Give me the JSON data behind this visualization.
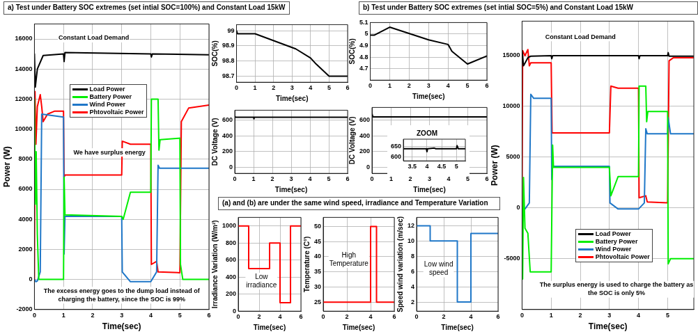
{
  "chart_data": [
    {
      "type": "other",
      "title": "a) Test under Battery SOC extremes (set intial SOC=100%) and Constant Load 15kW"
    },
    {
      "type": "line",
      "xlabel": "Time(sec)",
      "ylabel": "Power (W)",
      "xlim": [
        0,
        6
      ],
      "xticks": [
        0,
        1,
        2,
        3,
        4,
        5,
        6
      ],
      "ylim": [
        -2000,
        17000
      ],
      "yticks": [
        -2000,
        0,
        2000,
        4000,
        6000,
        8000,
        10000,
        12000,
        14000,
        16000
      ],
      "grid": true,
      "legend": "top left",
      "series": [
        {
          "name": "Load Power",
          "color": "#000000",
          "x": [
            0,
            0.03,
            0.1,
            0.3,
            1,
            1.02,
            1.05,
            4,
            4.02,
            4.05,
            6
          ],
          "values": [
            15000,
            12800,
            14000,
            14900,
            15000,
            14500,
            15100,
            15000,
            14800,
            15000,
            14950
          ]
        },
        {
          "name": "Battery Power",
          "color": "#00ee00",
          "x": [
            0,
            0.03,
            0.06,
            0.1,
            0.15,
            1,
            1.02,
            1.05,
            3,
            3.05,
            3.3,
            4,
            4.02,
            4.25,
            4.28,
            4.32,
            5,
            5.02,
            5.1,
            6
          ],
          "values": [
            12000,
            5000,
            8500,
            3000,
            0,
            0,
            6800,
            4300,
            4200,
            4000,
            5800,
            5800,
            12000,
            12000,
            8600,
            9300,
            9400,
            1000,
            0,
            0
          ]
        },
        {
          "name": "Wind Power",
          "color": "#1f77c8",
          "x": [
            0,
            0.05,
            0.1,
            0.2,
            0.25,
            1,
            1.02,
            1.05,
            3,
            3.02,
            3.3,
            4,
            4.2,
            4.25,
            4.3,
            6
          ],
          "values": [
            0,
            -150,
            -100,
            500,
            11000,
            10800,
            1700,
            4200,
            4200,
            500,
            -150,
            -150,
            500,
            7600,
            7400,
            7400
          ]
        },
        {
          "name": "Phtovoltaic Power",
          "color": "#ff0000",
          "x": [
            0,
            0.02,
            0.05,
            0.1,
            0.2,
            0.25,
            0.3,
            0.45,
            0.7,
            1,
            1.02,
            1.05,
            3,
            3.02,
            3.3,
            4,
            4.02,
            4.2,
            4.25,
            5,
            5.05,
            5.3,
            6
          ],
          "values": [
            0,
            12500,
            9000,
            11500,
            12300,
            11500,
            10500,
            11000,
            11200,
            11200,
            6800,
            6950,
            6950,
            9200,
            9000,
            9000,
            1000,
            1200,
            500,
            450,
            10500,
            11400,
            11600
          ]
        }
      ],
      "annotations": [
        "Constant Load Demand",
        "We have surplus energy",
        "The excess energy goes to the dump load instead of charging the battery, since the SOC is 99%"
      ]
    },
    {
      "type": "line",
      "xlabel": "Time(sec)",
      "ylabel": "SOC(%)",
      "xlim": [
        0,
        6
      ],
      "xticks": [
        0,
        1,
        2,
        3,
        4,
        5,
        6
      ],
      "ylim": [
        98.66,
        99.04
      ],
      "yticks": [
        98.7,
        98.8,
        98.9,
        99
      ],
      "grid": true,
      "series": [
        {
          "color": "#000000",
          "x": [
            0,
            0.05,
            1,
            3.2,
            4,
            4.3,
            5,
            6
          ],
          "values": [
            99,
            98.98,
            98.98,
            98.88,
            98.82,
            98.78,
            98.7,
            98.7
          ]
        }
      ]
    },
    {
      "type": "line",
      "xlabel": "Time(sec)",
      "ylabel": "DC Voltage (V)",
      "xlim": [
        0,
        6
      ],
      "xticks": [
        0,
        1,
        2,
        3,
        4,
        5,
        6
      ],
      "ylim": [
        -80,
        730
      ],
      "yticks": [
        0,
        200,
        400,
        600
      ],
      "grid": true,
      "series": [
        {
          "color": "#000000",
          "x": [
            0,
            0.05,
            1,
            1.02,
            1.05,
            6
          ],
          "values": [
            650,
            640,
            640,
            620,
            640,
            640
          ]
        }
      ]
    },
    {
      "type": "other",
      "title": "b) Test under Battery SOC extremes (set intial SOC=5%) and Constant Load 15kW"
    },
    {
      "type": "line",
      "xlabel": "Time(sec)",
      "ylabel": "SOC(%)",
      "xlim": [
        0,
        6
      ],
      "xticks": [
        0,
        1,
        2,
        3,
        4,
        5,
        6
      ],
      "ylim": [
        4.6,
        5.1
      ],
      "yticks": [
        4.7,
        4.8,
        4.9,
        5,
        5.1
      ],
      "grid": true,
      "series": [
        {
          "color": "#000000",
          "x": [
            0,
            0.2,
            1,
            3,
            4,
            4.2,
            5,
            6
          ],
          "values": [
            4.99,
            4.99,
            5.06,
            4.95,
            4.91,
            4.85,
            4.74,
            4.81
          ]
        }
      ]
    },
    {
      "type": "line",
      "xlabel": "Time(sec)",
      "ylabel": "DC Voltage (V)",
      "xlim": [
        0,
        6
      ],
      "xticks": [
        0,
        1,
        2,
        3,
        4,
        5,
        6
      ],
      "ylim": [
        -80,
        760
      ],
      "yticks": [
        0,
        200,
        400,
        600
      ],
      "grid": true,
      "series": [
        {
          "color": "#000000",
          "x": [
            0,
            0.05,
            6
          ],
          "values": [
            680,
            640,
            640
          ]
        }
      ]
    },
    {
      "type": "line",
      "title": "ZOOM",
      "xlim": [
        3.2,
        5.3
      ],
      "xticks": [
        3.5,
        4,
        4.5,
        5
      ],
      "ylim": [
        580,
        687
      ],
      "yticks": [
        600,
        650
      ],
      "grid": true,
      "series": [
        {
          "color": "#000000",
          "x": [
            3.2,
            3.98,
            4,
            4.02,
            4.25,
            4.3,
            5,
            5.02,
            5.06,
            5.3
          ],
          "values": [
            640,
            640,
            625,
            640,
            643,
            640,
            640,
            655,
            640,
            640
          ]
        }
      ]
    },
    {
      "type": "line",
      "xlabel": "Time(sec)",
      "ylabel": "Power (W)",
      "xlim": [
        0,
        5.9
      ],
      "xticks": [
        0,
        1,
        2,
        3,
        4,
        5
      ],
      "ylim": [
        -10000,
        18400
      ],
      "yticks": [
        -5000,
        0,
        5000,
        10000,
        15000
      ],
      "grid": true,
      "legend": "bottom",
      "series": [
        {
          "name": "Load Power",
          "color": "#000000",
          "x": [
            0,
            0.05,
            0.2,
            0.3,
            1,
            1.02,
            1.05,
            4,
            4.02,
            4.05,
            5,
            5.02,
            5.05,
            5.9
          ],
          "values": [
            15500,
            14000,
            14800,
            14950,
            15000,
            14700,
            15000,
            15000,
            14700,
            15000,
            15000,
            15300,
            14950,
            14950
          ]
        },
        {
          "name": "Battery Power",
          "color": "#00ee00",
          "x": [
            0,
            0.02,
            0.05,
            0.1,
            0.2,
            0.28,
            1,
            1.05,
            1.08,
            3,
            3.05,
            3.3,
            4,
            4.02,
            4.25,
            4.28,
            4.32,
            5,
            5.02,
            5.1,
            5.9
          ],
          "values": [
            0,
            -7000,
            3000,
            -2000,
            -2500,
            -6300,
            -6300,
            6200,
            4000,
            4000,
            1200,
            3100,
            3100,
            12000,
            12000,
            8500,
            9500,
            9500,
            -5500,
            -5000,
            -5000
          ]
        },
        {
          "name": "Wind Power",
          "color": "#1f77c8",
          "x": [
            0,
            0.1,
            0.25,
            0.3,
            0.4,
            1,
            1.02,
            1.05,
            3,
            3.02,
            3.3,
            4,
            4.2,
            4.25,
            4.3,
            5,
            5.02,
            5.1,
            5.9
          ],
          "values": [
            0,
            -100,
            500,
            11200,
            10800,
            10800,
            2800,
            4100,
            4100,
            500,
            -100,
            -100,
            500,
            7800,
            7300,
            7300,
            8900,
            7300,
            7300
          ]
        },
        {
          "name": "Phtovoltaic Power",
          "color": "#ff0000",
          "x": [
            0,
            0.02,
            0.1,
            0.2,
            0.25,
            0.3,
            1,
            1.03,
            3,
            3.05,
            3.3,
            4,
            4.02,
            4.25,
            4.3,
            5,
            5.05,
            5.2,
            5.9
          ],
          "values": [
            0,
            15500,
            15000,
            15600,
            14000,
            14300,
            14300,
            7400,
            7400,
            12000,
            11800,
            11800,
            1000,
            1200,
            600,
            500,
            14500,
            14800,
            14800
          ]
        }
      ],
      "annotations": [
        "Constant Load Demand",
        "The surplus energy is used to charge the battery as the SOC is only 5%"
      ]
    },
    {
      "type": "other",
      "title": "(a) and (b) are under the same wind speed, irradiance and Temperature Variation"
    },
    {
      "type": "line",
      "xlabel": "Time(sec)",
      "ylabel": "Irradiance Variation (W/m²)",
      "xlim": [
        0,
        6
      ],
      "xticks": [
        0,
        2,
        4,
        6
      ],
      "ylim": [
        0,
        1100
      ],
      "yticks": [
        0,
        200,
        400,
        600,
        800,
        1000
      ],
      "grid": true,
      "series": [
        {
          "color": "#ff0000",
          "x": [
            0,
            1,
            1,
            3,
            3,
            4,
            4,
            5,
            5,
            6
          ],
          "values": [
            1000,
            1000,
            500,
            500,
            800,
            800,
            100,
            100,
            1000,
            1000
          ]
        }
      ],
      "annotations": [
        "Low irradiance"
      ]
    },
    {
      "type": "line",
      "xlabel": "Time(sec)",
      "ylabel": "Temperature (C°)",
      "xlim": [
        0,
        6
      ],
      "xticks": [
        0,
        2,
        4,
        6
      ],
      "ylim": [
        22,
        53
      ],
      "yticks": [
        25,
        30,
        35,
        40,
        45,
        50
      ],
      "grid": true,
      "series": [
        {
          "color": "#ff0000",
          "x": [
            0,
            4,
            4,
            4.5,
            4.5,
            6
          ],
          "values": [
            25,
            25,
            50,
            50,
            25,
            25
          ]
        }
      ],
      "annotations": [
        "High Temperature"
      ]
    },
    {
      "type": "line",
      "xlabel": "Time(sec)",
      "ylabel": "Speed wind variation (m/sec)",
      "xlim": [
        0,
        6
      ],
      "xticks": [
        0,
        2,
        4,
        6
      ],
      "ylim": [
        0.8,
        13.1
      ],
      "yticks": [
        2,
        4,
        6,
        8,
        10,
        12
      ],
      "grid": true,
      "series": [
        {
          "color": "#1f77c8",
          "x": [
            0,
            1,
            1,
            3,
            3,
            4,
            4,
            6
          ],
          "values": [
            12,
            12,
            10,
            10,
            2,
            2,
            11,
            11
          ]
        }
      ],
      "annotations": [
        "Low wind speed"
      ]
    }
  ]
}
